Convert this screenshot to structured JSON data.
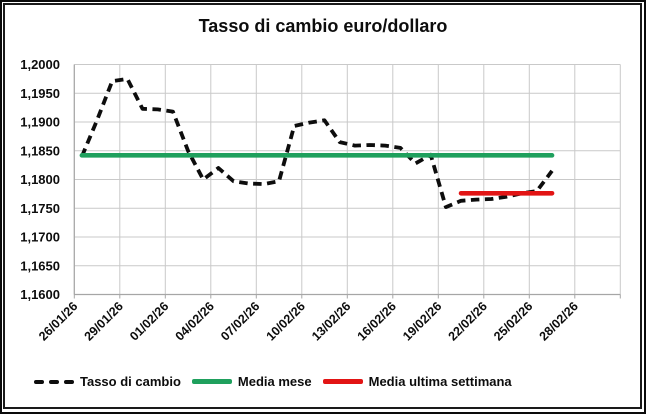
{
  "chart_data": {
    "type": "line",
    "title": "Tasso di cambio euro/dollaro",
    "x": [
      "26/01/26",
      "27/01/26",
      "28/01/26",
      "29/01/26",
      "30/01/26",
      "31/01/26",
      "01/02/26",
      "02/02/26",
      "03/02/26",
      "04/02/26",
      "05/02/26",
      "06/02/26",
      "07/02/26",
      "08/02/26",
      "09/02/26",
      "10/02/26",
      "11/02/26",
      "12/02/26",
      "13/02/26",
      "14/02/26",
      "15/02/26",
      "16/02/26",
      "17/02/26",
      "18/02/26",
      "19/02/26",
      "20/02/26",
      "21/02/26",
      "22/02/26",
      "23/02/26",
      "24/02/26",
      "25/02/26",
      "26/02/26"
    ],
    "series": [
      {
        "name": "Tasso di cambio",
        "type": "line",
        "style": "dashed",
        "color": "#0d0d0d",
        "values": [
          1.184,
          1.1903,
          1.1971,
          1.1975,
          1.1923,
          1.1922,
          1.1918,
          1.185,
          1.18,
          1.182,
          1.1797,
          1.1793,
          1.1792,
          1.1797,
          1.1893,
          1.1899,
          1.1903,
          1.1865,
          1.1859,
          1.186,
          1.1859,
          1.1855,
          1.1828,
          1.1843,
          1.1752,
          1.1763,
          1.1765,
          1.1766,
          1.177,
          1.1776,
          1.178,
          1.1815
        ]
      },
      {
        "name": "Media mese",
        "type": "constant-line",
        "style": "solid",
        "color": "#1fa05d",
        "value": 1.1842,
        "start_index": 0,
        "end_index": 31
      },
      {
        "name": "Media ultima settimana",
        "type": "constant-line",
        "style": "solid",
        "color": "#e21414",
        "value": 1.1776,
        "start_index": 25,
        "end_index": 31
      }
    ],
    "x_tick_labels": [
      "26/01/26",
      "29/01/26",
      "01/02/26",
      "04/02/26",
      "07/02/26",
      "10/02/26",
      "13/02/26",
      "16/02/26",
      "19/02/26",
      "22/02/26",
      "25/02/26",
      "28/02/26"
    ],
    "y_tick_labels": [
      "1,2000",
      "1,1950",
      "1,1900",
      "1,1850",
      "1,1800",
      "1,1750",
      "1,1700",
      "1,1650",
      "1,1600"
    ],
    "ylim": [
      1.16,
      1.2
    ],
    "y_step": 0.005,
    "grid": true,
    "legend_position": "bottom"
  },
  "legend": {
    "items": [
      {
        "label": "Tasso di cambio",
        "color": "#0d0d0d",
        "style": "dashed"
      },
      {
        "label": "Media mese",
        "color": "#1fa05d",
        "style": "solid"
      },
      {
        "label": "Media ultima settimana",
        "color": "#e21414",
        "style": "solid"
      }
    ]
  },
  "colors": {
    "grid": "#c9c9c9",
    "axis": "#a6a6a6",
    "text": "#0d0d0d",
    "background": "#ffffff"
  }
}
